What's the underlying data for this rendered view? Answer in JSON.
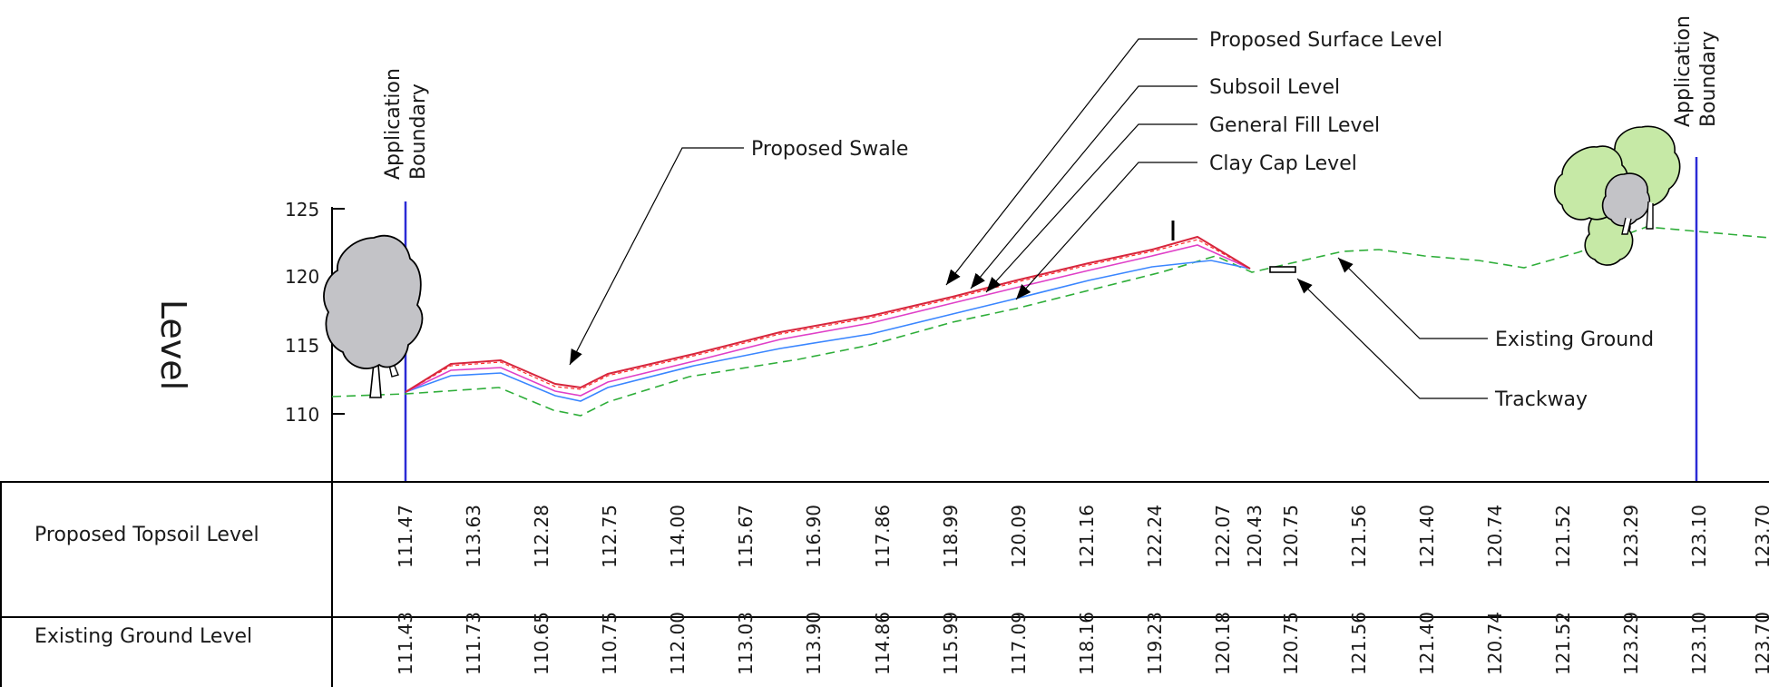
{
  "axis_label": "Level",
  "boundary_label_lines": [
    "Application",
    "Boundary"
  ],
  "y_ticks": [
    "125",
    "120",
    "115",
    "110"
  ],
  "annotations": {
    "proposed_surface_level": "Proposed Surface Level",
    "subsoil_level": "Subsoil Level",
    "general_fill_level": "General Fill Level",
    "clay_cap_level": "Clay Cap Level",
    "proposed_swale": "Proposed Swale",
    "existing_ground": "Existing Ground",
    "trackway": "Trackway"
  },
  "table": {
    "row1_label": "Proposed Topsoil Level",
    "row2_label": "Existing Ground Level",
    "proposed_topsoil_values": [
      "111.47",
      "113.63",
      "112.28",
      "112.75",
      "114.00",
      "115.67",
      "116.90",
      "117.86",
      "118.99",
      "120.09",
      "121.16",
      "122.24",
      "122.07",
      "120.43",
      "120.75",
      "121.56",
      "121.40",
      "120.74",
      "121.52",
      "123.29",
      "123.10",
      "123.70"
    ],
    "existing_ground_values": [
      "111.43",
      "111.73",
      "110.65",
      "110.75",
      "112.00",
      "113.03",
      "113.90",
      "114.86",
      "115.99",
      "117.09",
      "118.16",
      "119.23",
      "120.18",
      "",
      "120.75",
      "121.56",
      "121.40",
      "120.74",
      "121.52",
      "123.29",
      "123.10",
      "123.70"
    ]
  },
  "colors": {
    "proposed_surface": "#d7263d",
    "subsoil": "#e040c8",
    "general_fill": "#ff2a2a",
    "clay_cap": "#3a86ff",
    "existing_ground": "#2fae3a",
    "boundary": "#2b2bd6",
    "tree_grey": "#c3c3c7",
    "tree_green": "#c6e9a6"
  }
}
